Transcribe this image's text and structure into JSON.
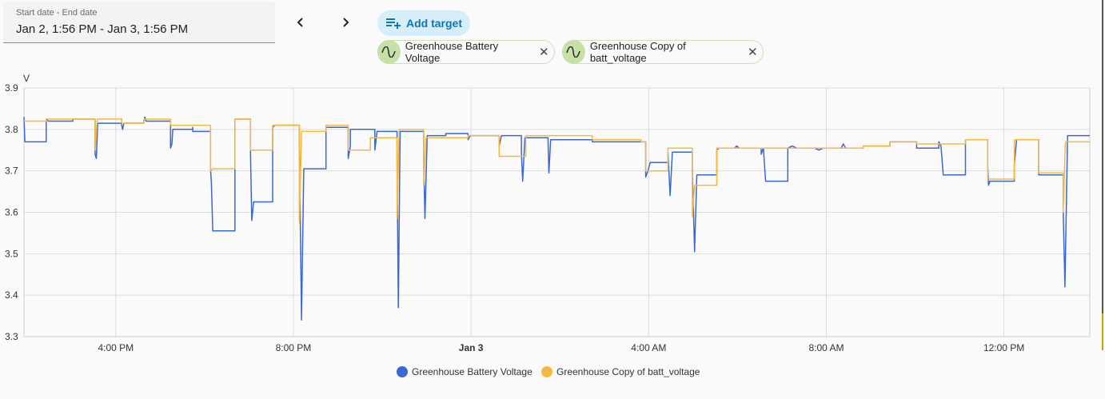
{
  "date_range": {
    "label": "Start date - End date",
    "value": "Jan 2, 1:56 PM - Jan 3, 1:56 PM"
  },
  "add_target_label": "Add target",
  "targets": [
    {
      "label": "Greenhouse Battery Voltage"
    },
    {
      "label": "Greenhouse Copy of batt_voltage"
    }
  ],
  "colors": {
    "series1": "#3b67d1",
    "series2": "#f5b942"
  },
  "chart_data": {
    "type": "line",
    "ylabel": "V",
    "ylim": [
      3.3,
      3.9
    ],
    "yticks": [
      3.3,
      3.4,
      3.5,
      3.6,
      3.7,
      3.8,
      3.9
    ],
    "xlim_hours": [
      0,
      24
    ],
    "xticks": [
      {
        "h": 2.067,
        "label": "4:00 PM",
        "bold": false
      },
      {
        "h": 6.067,
        "label": "8:00 PM",
        "bold": false
      },
      {
        "h": 10.067,
        "label": "Jan 3",
        "bold": true
      },
      {
        "h": 14.067,
        "label": "4:00 AM",
        "bold": false
      },
      {
        "h": 18.067,
        "label": "8:00 AM",
        "bold": false
      },
      {
        "h": 22.067,
        "label": "12:00 PM",
        "bold": false
      }
    ],
    "grid": true,
    "legend_position": "bottom",
    "series": [
      {
        "name": "Greenhouse Battery Voltage",
        "points": [
          [
            0.0,
            3.83
          ],
          [
            0.02,
            3.77
          ],
          [
            0.5,
            3.77
          ],
          [
            0.5,
            3.825
          ],
          [
            0.55,
            3.82
          ],
          [
            1.1,
            3.82
          ],
          [
            1.1,
            3.825
          ],
          [
            1.6,
            3.825
          ],
          [
            1.6,
            3.74
          ],
          [
            1.63,
            3.73
          ],
          [
            1.66,
            3.815
          ],
          [
            2.2,
            3.815
          ],
          [
            2.2,
            3.825
          ],
          [
            2.2,
            3.81
          ],
          [
            2.22,
            3.8
          ],
          [
            2.25,
            3.815
          ],
          [
            2.7,
            3.815
          ],
          [
            2.7,
            3.82
          ],
          [
            2.72,
            3.83
          ],
          [
            2.75,
            3.82
          ],
          [
            3.3,
            3.82
          ],
          [
            3.3,
            3.755
          ],
          [
            3.33,
            3.765
          ],
          [
            3.35,
            3.8
          ],
          [
            3.8,
            3.8
          ],
          [
            3.8,
            3.805
          ],
          [
            3.8,
            3.795
          ],
          [
            4.2,
            3.795
          ],
          [
            4.2,
            3.705
          ],
          [
            4.22,
            3.67
          ],
          [
            4.25,
            3.555
          ],
          [
            4.75,
            3.555
          ],
          [
            4.75,
            3.825
          ],
          [
            5.1,
            3.825
          ],
          [
            5.1,
            3.74
          ],
          [
            5.13,
            3.58
          ],
          [
            5.17,
            3.625
          ],
          [
            5.6,
            3.625
          ],
          [
            5.6,
            3.805
          ],
          [
            5.65,
            3.81
          ],
          [
            6.2,
            3.81
          ],
          [
            6.2,
            3.76
          ],
          [
            6.25,
            3.34
          ],
          [
            6.3,
            3.705
          ],
          [
            6.8,
            3.705
          ],
          [
            6.8,
            3.805
          ],
          [
            7.3,
            3.805
          ],
          [
            7.3,
            3.73
          ],
          [
            7.35,
            3.76
          ],
          [
            7.35,
            3.8
          ],
          [
            7.9,
            3.8
          ],
          [
            7.9,
            3.75
          ],
          [
            7.95,
            3.795
          ],
          [
            8.4,
            3.795
          ],
          [
            8.4,
            3.72
          ],
          [
            8.43,
            3.37
          ],
          [
            8.47,
            3.795
          ],
          [
            9.0,
            3.795
          ],
          [
            9.0,
            3.72
          ],
          [
            9.03,
            3.585
          ],
          [
            9.08,
            3.785
          ],
          [
            9.5,
            3.785
          ],
          [
            9.5,
            3.79
          ],
          [
            10.0,
            3.79
          ],
          [
            10.0,
            3.775
          ],
          [
            10.05,
            3.785
          ],
          [
            10.7,
            3.785
          ],
          [
            10.7,
            3.76
          ],
          [
            10.75,
            3.785
          ],
          [
            11.2,
            3.785
          ],
          [
            11.2,
            3.745
          ],
          [
            11.23,
            3.675
          ],
          [
            11.28,
            3.78
          ],
          [
            11.8,
            3.78
          ],
          [
            11.8,
            3.775
          ],
          [
            11.82,
            3.695
          ],
          [
            11.86,
            3.775
          ],
          [
            12.3,
            3.775
          ],
          [
            12.8,
            3.775
          ],
          [
            12.8,
            3.77
          ],
          [
            13.3,
            3.77
          ],
          [
            13.3,
            3.77
          ],
          [
            13.9,
            3.77
          ],
          [
            13.9,
            3.77
          ],
          [
            14.0,
            3.77
          ],
          [
            14.0,
            3.685
          ],
          [
            14.05,
            3.7
          ],
          [
            14.1,
            3.72
          ],
          [
            14.5,
            3.72
          ],
          [
            14.5,
            3.745
          ],
          [
            14.55,
            3.64
          ],
          [
            14.6,
            3.745
          ],
          [
            15.05,
            3.745
          ],
          [
            15.05,
            3.7
          ],
          [
            15.1,
            3.505
          ],
          [
            15.15,
            3.69
          ],
          [
            15.6,
            3.69
          ],
          [
            15.6,
            3.75
          ],
          [
            15.65,
            3.755
          ],
          [
            16.0,
            3.755
          ],
          [
            16.05,
            3.76
          ],
          [
            16.1,
            3.755
          ],
          [
            16.6,
            3.755
          ],
          [
            16.6,
            3.74
          ],
          [
            16.65,
            3.755
          ],
          [
            16.7,
            3.675
          ],
          [
            17.2,
            3.675
          ],
          [
            17.2,
            3.755
          ],
          [
            17.3,
            3.76
          ],
          [
            17.4,
            3.755
          ],
          [
            17.8,
            3.755
          ],
          [
            17.9,
            3.75
          ],
          [
            18.0,
            3.755
          ],
          [
            18.4,
            3.755
          ],
          [
            18.45,
            3.765
          ],
          [
            18.5,
            3.755
          ],
          [
            18.9,
            3.755
          ],
          [
            18.9,
            3.76
          ],
          [
            19.5,
            3.76
          ],
          [
            19.5,
            3.77
          ],
          [
            20.1,
            3.77
          ],
          [
            20.1,
            3.755
          ],
          [
            20.6,
            3.755
          ],
          [
            20.6,
            3.77
          ],
          [
            20.65,
            3.76
          ],
          [
            20.7,
            3.69
          ],
          [
            21.2,
            3.69
          ],
          [
            21.2,
            3.775
          ],
          [
            21.7,
            3.775
          ],
          [
            21.7,
            3.71
          ],
          [
            21.72,
            3.665
          ],
          [
            21.75,
            3.675
          ],
          [
            22.3,
            3.675
          ],
          [
            22.3,
            3.715
          ],
          [
            22.35,
            3.775
          ],
          [
            22.85,
            3.775
          ],
          [
            22.85,
            3.69
          ],
          [
            22.9,
            3.69
          ],
          [
            23.4,
            3.69
          ],
          [
            23.4,
            3.605
          ],
          [
            23.44,
            3.42
          ],
          [
            23.5,
            3.785
          ],
          [
            24.0,
            3.785
          ]
        ]
      },
      {
        "name": "Greenhouse Copy of batt_voltage",
        "points": [
          [
            0.0,
            3.82
          ],
          [
            0.5,
            3.82
          ],
          [
            0.5,
            3.825
          ],
          [
            1.6,
            3.825
          ],
          [
            1.6,
            3.75
          ],
          [
            1.65,
            3.825
          ],
          [
            2.2,
            3.825
          ],
          [
            2.2,
            3.815
          ],
          [
            2.7,
            3.815
          ],
          [
            2.7,
            3.825
          ],
          [
            3.3,
            3.825
          ],
          [
            3.3,
            3.81
          ],
          [
            3.8,
            3.81
          ],
          [
            3.8,
            3.81
          ],
          [
            4.2,
            3.81
          ],
          [
            4.2,
            3.7
          ],
          [
            4.25,
            3.705
          ],
          [
            4.75,
            3.705
          ],
          [
            4.75,
            3.825
          ],
          [
            5.1,
            3.825
          ],
          [
            5.1,
            3.75
          ],
          [
            5.6,
            3.75
          ],
          [
            5.6,
            3.81
          ],
          [
            6.2,
            3.81
          ],
          [
            6.2,
            3.575
          ],
          [
            6.25,
            3.795
          ],
          [
            6.8,
            3.795
          ],
          [
            6.8,
            3.81
          ],
          [
            7.3,
            3.81
          ],
          [
            7.3,
            3.75
          ],
          [
            7.8,
            3.75
          ],
          [
            7.8,
            3.78
          ],
          [
            8.4,
            3.78
          ],
          [
            8.4,
            3.585
          ],
          [
            8.45,
            3.8
          ],
          [
            9.0,
            3.8
          ],
          [
            9.0,
            3.665
          ],
          [
            9.05,
            3.78
          ],
          [
            9.5,
            3.78
          ],
          [
            10.0,
            3.78
          ],
          [
            10.0,
            3.785
          ],
          [
            10.7,
            3.785
          ],
          [
            10.7,
            3.735
          ],
          [
            11.3,
            3.735
          ],
          [
            11.3,
            3.785
          ],
          [
            11.8,
            3.785
          ],
          [
            11.8,
            3.785
          ],
          [
            12.8,
            3.785
          ],
          [
            12.8,
            3.775
          ],
          [
            13.9,
            3.775
          ],
          [
            13.9,
            3.77
          ],
          [
            14.0,
            3.77
          ],
          [
            14.0,
            3.7
          ],
          [
            14.5,
            3.7
          ],
          [
            14.5,
            3.755
          ],
          [
            15.05,
            3.755
          ],
          [
            15.05,
            3.59
          ],
          [
            15.1,
            3.665
          ],
          [
            15.6,
            3.665
          ],
          [
            15.6,
            3.755
          ],
          [
            16.6,
            3.755
          ],
          [
            16.6,
            3.755
          ],
          [
            17.2,
            3.755
          ],
          [
            17.2,
            3.755
          ],
          [
            18.9,
            3.755
          ],
          [
            18.9,
            3.76
          ],
          [
            19.5,
            3.76
          ],
          [
            19.5,
            3.77
          ],
          [
            20.1,
            3.77
          ],
          [
            20.1,
            3.765
          ],
          [
            20.6,
            3.765
          ],
          [
            20.6,
            3.765
          ],
          [
            21.2,
            3.765
          ],
          [
            21.2,
            3.775
          ],
          [
            21.7,
            3.775
          ],
          [
            21.7,
            3.68
          ],
          [
            22.3,
            3.68
          ],
          [
            22.3,
            3.775
          ],
          [
            22.85,
            3.775
          ],
          [
            22.85,
            3.695
          ],
          [
            23.4,
            3.695
          ],
          [
            23.4,
            3.6
          ],
          [
            23.45,
            3.77
          ],
          [
            24.0,
            3.77
          ]
        ]
      }
    ]
  }
}
